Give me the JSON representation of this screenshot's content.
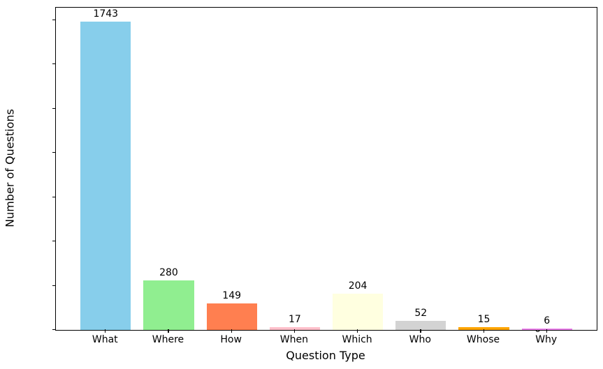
{
  "chart_data": {
    "type": "bar",
    "title": "",
    "xlabel": "Question Type",
    "ylabel": "Number of Questions",
    "categories": [
      "What",
      "Where",
      "How",
      "When",
      "Which",
      "Who",
      "Whose",
      "Why"
    ],
    "values": [
      1743,
      280,
      149,
      17,
      204,
      52,
      15,
      6
    ],
    "bar_colors": [
      "#87CEEB",
      "#90EE90",
      "#FF7F50",
      "#FFC0CB",
      "#FFFFE0",
      "#D3D3D3",
      "#FFA500",
      "#EE82EE"
    ],
    "value_labels": [
      "1743",
      "280",
      "149",
      "17",
      "204",
      "52",
      "15",
      "6"
    ],
    "yticks": [
      0,
      250,
      500,
      750,
      1000,
      1250,
      1500,
      1750
    ],
    "ylim": [
      0,
      1820
    ],
    "xlim_units": [
      -0.79,
      7.79
    ],
    "bar_width_units": 0.8,
    "grid": false,
    "legend": "none",
    "background": "#ffffff",
    "spine_color": "#000000"
  }
}
